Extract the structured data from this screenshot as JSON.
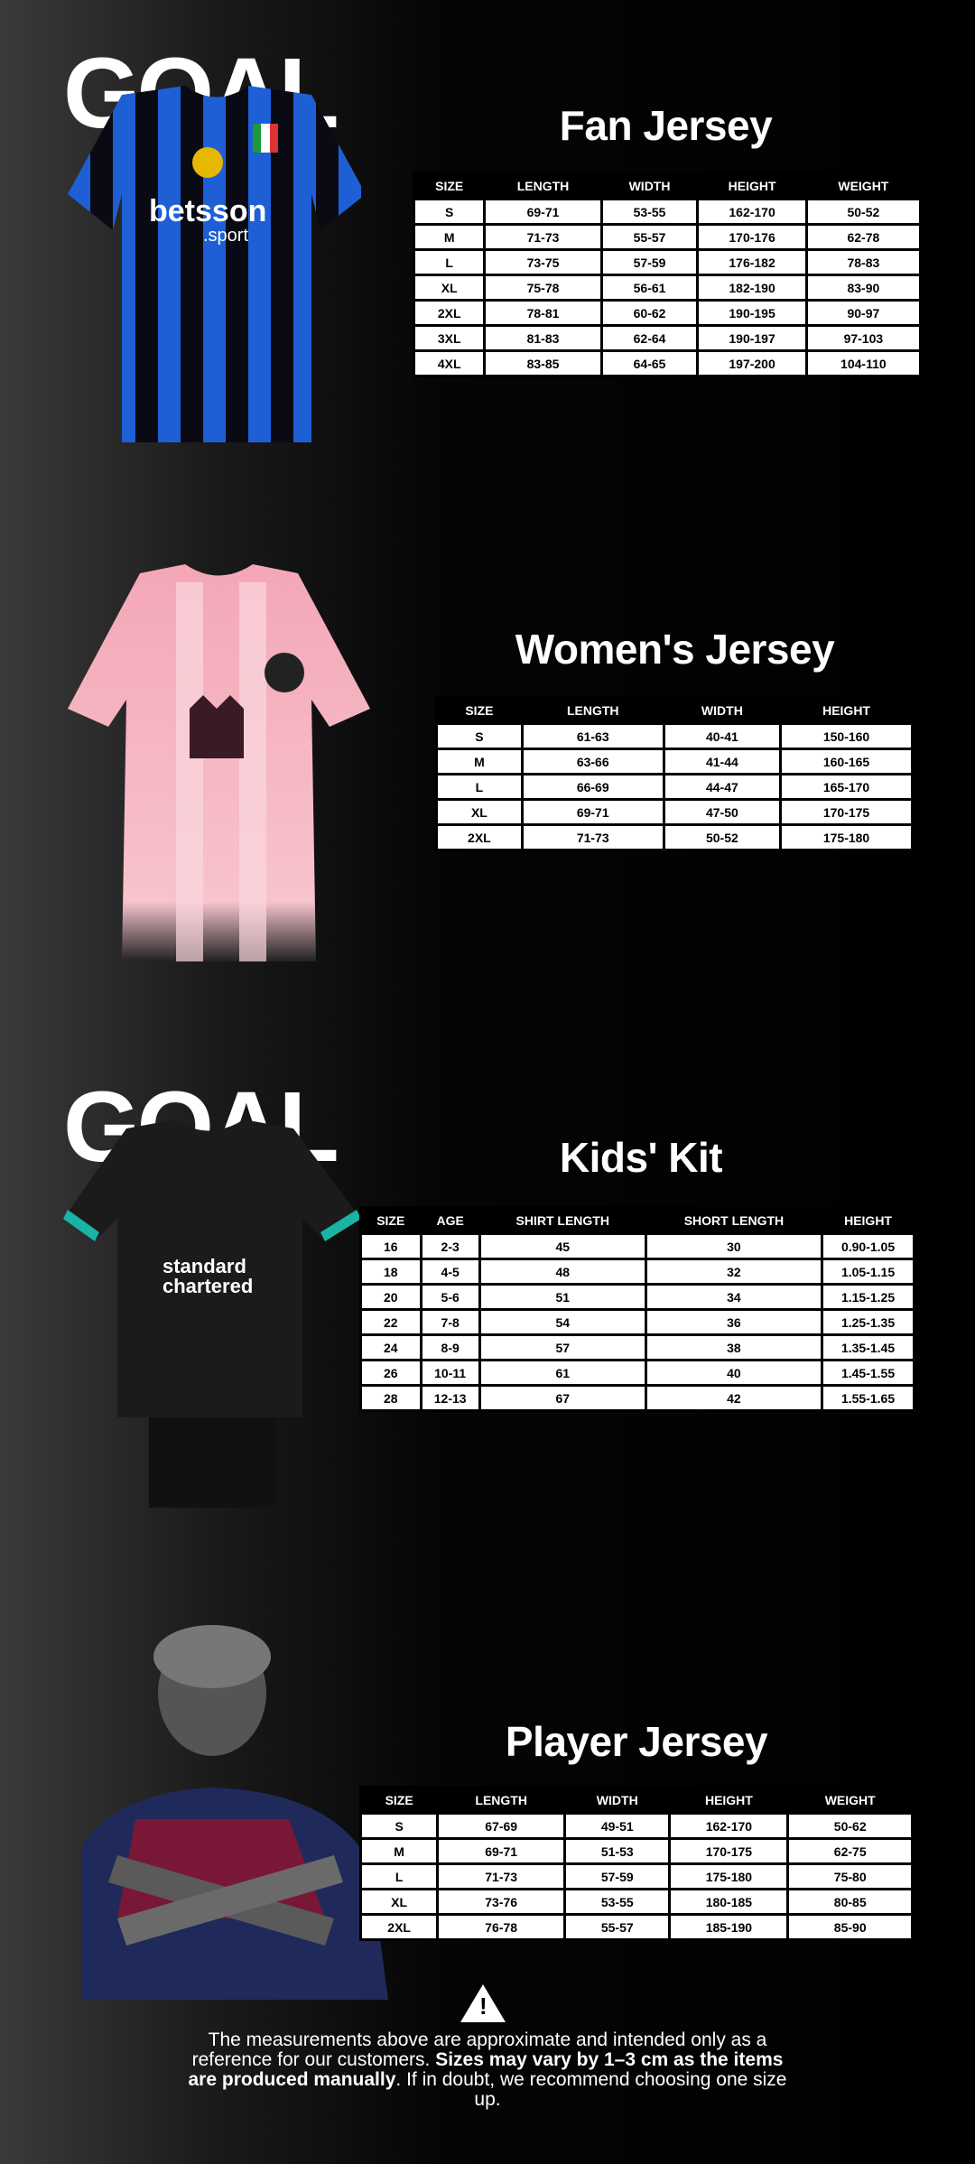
{
  "brand": {
    "logo_text": "GOAL"
  },
  "sections": [
    {
      "title": "Fan Jersey",
      "headers": [
        "SIZE",
        "LENGTH",
        "WIDTH",
        "HEIGHT",
        "WEIGHT"
      ],
      "rows": [
        [
          "S",
          "69-71",
          "53-55",
          "162-170",
          "50-52"
        ],
        [
          "M",
          "71-73",
          "55-57",
          "170-176",
          "62-78"
        ],
        [
          "L",
          "73-75",
          "57-59",
          "176-182",
          "78-83"
        ],
        [
          "XL",
          "75-78",
          "56-61",
          "182-190",
          "83-90"
        ],
        [
          "2XL",
          "78-81",
          "60-62",
          "190-195",
          "90-97"
        ],
        [
          "3XL",
          "81-83",
          "62-64",
          "190-197",
          "97-103"
        ],
        [
          "4XL",
          "83-85",
          "64-65",
          "197-200",
          "104-110"
        ]
      ],
      "image": {
        "description_icon": "blue-black-striped-jersey",
        "sponsor": "betsson .sport"
      }
    },
    {
      "title": "Women's Jersey",
      "headers": [
        "SIZE",
        "LENGTH",
        "WIDTH",
        "HEIGHT"
      ],
      "rows": [
        [
          "S",
          "61-63",
          "40-41",
          "150-160"
        ],
        [
          "M",
          "63-66",
          "41-44",
          "160-165"
        ],
        [
          "L",
          "66-69",
          "44-47",
          "165-170"
        ],
        [
          "XL",
          "69-71",
          "47-50",
          "170-175"
        ],
        [
          "2XL",
          "71-73",
          "50-52",
          "175-180"
        ]
      ],
      "image": {
        "description_icon": "pink-striped-jersey"
      }
    },
    {
      "title": "Kids' Kit",
      "headers": [
        "SIZE",
        "AGE",
        "SHIRT LENGTH",
        "SHORT LENGTH",
        "HEIGHT"
      ],
      "rows": [
        [
          "16",
          "2-3",
          "45",
          "30",
          "0.90-1.05"
        ],
        [
          "18",
          "4-5",
          "48",
          "32",
          "1.05-1.15"
        ],
        [
          "20",
          "5-6",
          "51",
          "34",
          "1.15-1.25"
        ],
        [
          "22",
          "7-8",
          "54",
          "36",
          "1.25-1.35"
        ],
        [
          "24",
          "8-9",
          "57",
          "38",
          "1.35-1.45"
        ],
        [
          "26",
          "10-11",
          "61",
          "40",
          "1.45-1.55"
        ],
        [
          "28",
          "12-13",
          "67",
          "42",
          "1.55-1.65"
        ]
      ],
      "image": {
        "description_icon": "black-kids-kit",
        "sponsor": "standard chartered"
      }
    },
    {
      "title": "Player Jersey",
      "headers": [
        "SIZE",
        "LENGTH",
        "WIDTH",
        "HEIGHT",
        "WEIGHT"
      ],
      "rows": [
        [
          "S",
          "67-69",
          "49-51",
          "162-170",
          "50-62"
        ],
        [
          "M",
          "69-71",
          "51-53",
          "170-175",
          "62-75"
        ],
        [
          "L",
          "71-73",
          "57-59",
          "175-180",
          "75-80"
        ],
        [
          "XL",
          "73-76",
          "53-55",
          "180-185",
          "80-85"
        ],
        [
          "2XL",
          "76-78",
          "55-57",
          "185-190",
          "85-90"
        ]
      ],
      "image": {
        "description_icon": "player-photo"
      }
    }
  ],
  "disclaimer": {
    "icon": "warning-icon",
    "part1": "The measurements above are approximate and intended only as a reference for our customers. ",
    "bold": "Sizes may vary by 1–3 cm as the items are produced manually",
    "part2": ". If in doubt, we recommend choosing one size up."
  }
}
